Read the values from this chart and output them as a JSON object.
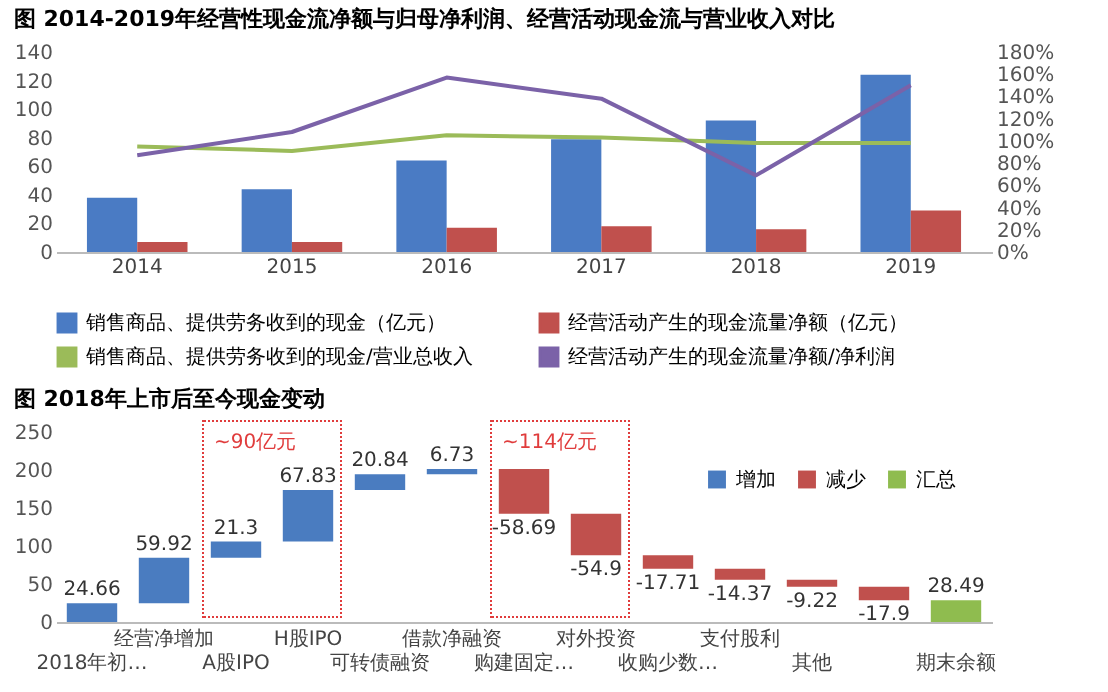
{
  "chart_data": [
    {
      "type": "bar",
      "title": "图 2014-2019年经营性现金流净额与归母净利润、经营活动现金流与营业收入对比",
      "categories": [
        "2014",
        "2015",
        "2016",
        "2017",
        "2018",
        "2019"
      ],
      "series": [
        {
          "name": "销售商品、提供劳务收到的现金（亿元）",
          "color": "#4a7bc4",
          "type": "bar",
          "values": [
            38,
            44,
            64,
            79,
            92,
            124
          ]
        },
        {
          "name": "经营活动产生的现金流量净额（亿元）",
          "color": "#c0504d",
          "type": "bar",
          "values": [
            7,
            7,
            17,
            18,
            16,
            29
          ]
        },
        {
          "name": "销售商品、提供劳务收到的现金/营业总收入",
          "color": "#9bbb59",
          "type": "line",
          "axis": "y2",
          "values": [
            95,
            91,
            105,
            103,
            98,
            98
          ]
        },
        {
          "name": "经营活动产生的现金流量净额/净利润",
          "color": "#7b62a8",
          "type": "line",
          "axis": "y2",
          "values": [
            87,
            108,
            157,
            138,
            69,
            150
          ]
        }
      ],
      "ylim": [
        0,
        140
      ],
      "yticks": [
        0,
        20,
        40,
        60,
        80,
        100,
        120,
        140
      ],
      "y2lim": [
        0,
        180
      ],
      "y2ticks": [
        {
          "value": 0,
          "label": "0%"
        },
        {
          "value": 20,
          "label": "20%"
        },
        {
          "value": 40,
          "label": "40%"
        },
        {
          "value": 60,
          "label": "60%"
        },
        {
          "value": 80,
          "label": "80%"
        },
        {
          "value": 100,
          "label": "100%"
        },
        {
          "value": 120,
          "label": "120%"
        },
        {
          "value": 140,
          "label": "140%"
        },
        {
          "value": 160,
          "label": "160%"
        },
        {
          "value": 180,
          "label": "180%"
        }
      ],
      "legend": "bottom"
    },
    {
      "type": "bar",
      "title": "图 2018年上市后至今现金变动",
      "categories": [
        "2018年初…",
        "经营净增加",
        "A股IPO",
        "H股IPO",
        "可转债融资",
        "借款净融资",
        "购建固定…",
        "对外投资",
        "收购少数…",
        "支付股利",
        "其他",
        null,
        "期末余额"
      ],
      "series": [
        {
          "name": "增加",
          "color": "#4a7cc0",
          "values": [
            24.66,
            59.92,
            21.3,
            67.83,
            20.84,
            6.73,
            null,
            null,
            null,
            null,
            null,
            null,
            null
          ],
          "base": [
            0,
            24.66,
            84.58,
            105.88,
            173.71,
            194.55,
            null,
            null,
            null,
            null,
            null,
            null,
            null
          ]
        },
        {
          "name": "减少",
          "color": "#c0504d",
          "values": [
            null,
            null,
            null,
            null,
            null,
            null,
            -58.69,
            -54.9,
            -17.71,
            -14.37,
            -9.22,
            -17.9,
            null
          ],
          "base": [
            null,
            null,
            null,
            null,
            null,
            null,
            201.28,
            142.59,
            87.69,
            69.98,
            55.61,
            46.39,
            null
          ]
        },
        {
          "name": "汇总",
          "color": "#8fbc4f",
          "values": [
            null,
            null,
            null,
            null,
            null,
            null,
            null,
            null,
            null,
            null,
            null,
            null,
            28.49
          ],
          "base": [
            null,
            null,
            null,
            null,
            null,
            null,
            null,
            null,
            null,
            null,
            null,
            null,
            0
          ]
        }
      ],
      "ylim": [
        0,
        250
      ],
      "yticks": [
        0,
        50,
        100,
        150,
        200,
        250
      ],
      "data_labels": true,
      "legend": "top right",
      "annotations": [
        "~90亿元",
        "~114亿元"
      ]
    }
  ]
}
